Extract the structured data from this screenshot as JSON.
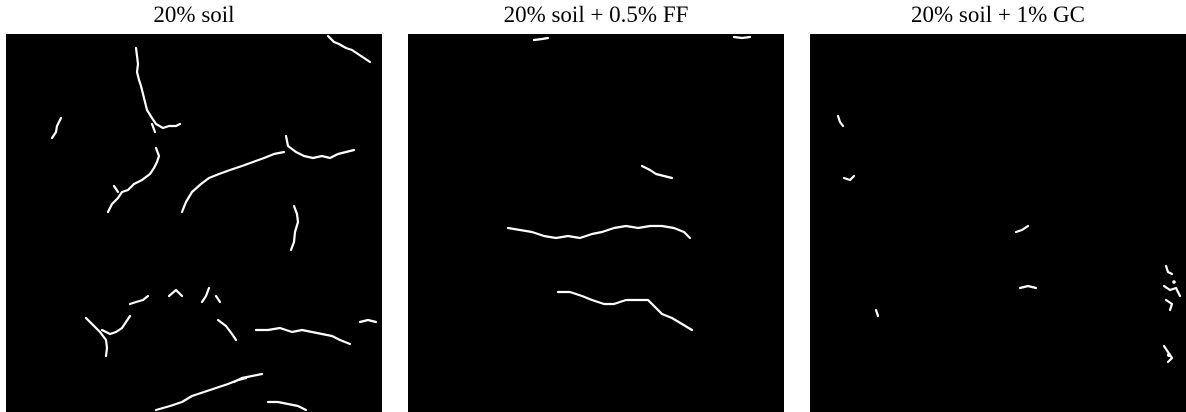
{
  "panels": [
    {
      "title": "20% soil",
      "crack_color": "#ffffff",
      "background_color": "#000000"
    },
    {
      "title": "20% soil + 0.5% FF",
      "crack_color": "#ffffff",
      "background_color": "#000000"
    },
    {
      "title": "20% soil + 1% GC",
      "crack_color": "#ffffff",
      "background_color": "#000000"
    }
  ]
}
